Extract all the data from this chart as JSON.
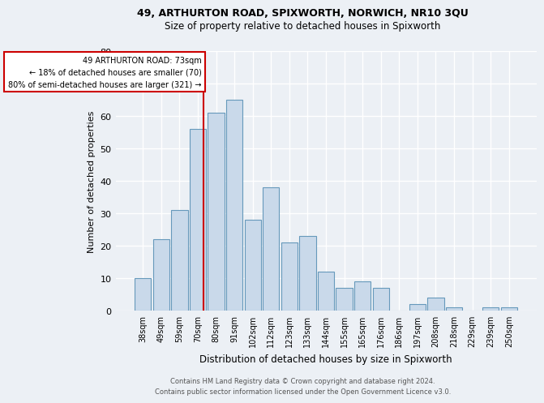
{
  "title1": "49, ARTHURTON ROAD, SPIXWORTH, NORWICH, NR10 3QU",
  "title2": "Size of property relative to detached houses in Spixworth",
  "xlabel": "Distribution of detached houses by size in Spixworth",
  "ylabel": "Number of detached properties",
  "categories": [
    "38sqm",
    "49sqm",
    "59sqm",
    "70sqm",
    "80sqm",
    "91sqm",
    "102sqm",
    "112sqm",
    "123sqm",
    "133sqm",
    "144sqm",
    "155sqm",
    "165sqm",
    "176sqm",
    "186sqm",
    "197sqm",
    "208sqm",
    "218sqm",
    "229sqm",
    "239sqm",
    "250sqm"
  ],
  "values": [
    10,
    22,
    31,
    56,
    61,
    65,
    28,
    38,
    21,
    23,
    12,
    7,
    9,
    7,
    0,
    2,
    4,
    1,
    0,
    1,
    1
  ],
  "bar_color": "#c9d9ea",
  "bar_edge_color": "#6699bb",
  "ref_line_color": "#cc0000",
  "annotation_line1": "49 ARTHURTON ROAD: 73sqm",
  "annotation_line2": "← 18% of detached houses are smaller (70)",
  "annotation_line3": "80% of semi-detached houses are larger (321) →",
  "annotation_box_color": "#ffffff",
  "annotation_border_color": "#cc0000",
  "ylim": [
    0,
    80
  ],
  "yticks": [
    0,
    10,
    20,
    30,
    40,
    50,
    60,
    70,
    80
  ],
  "footer1": "Contains HM Land Registry data © Crown copyright and database right 2024.",
  "footer2": "Contains public sector information licensed under the Open Government Licence v3.0.",
  "bg_color": "#ecf0f5",
  "plot_bg_color": "#ecf0f5",
  "grid_color": "#ffffff"
}
